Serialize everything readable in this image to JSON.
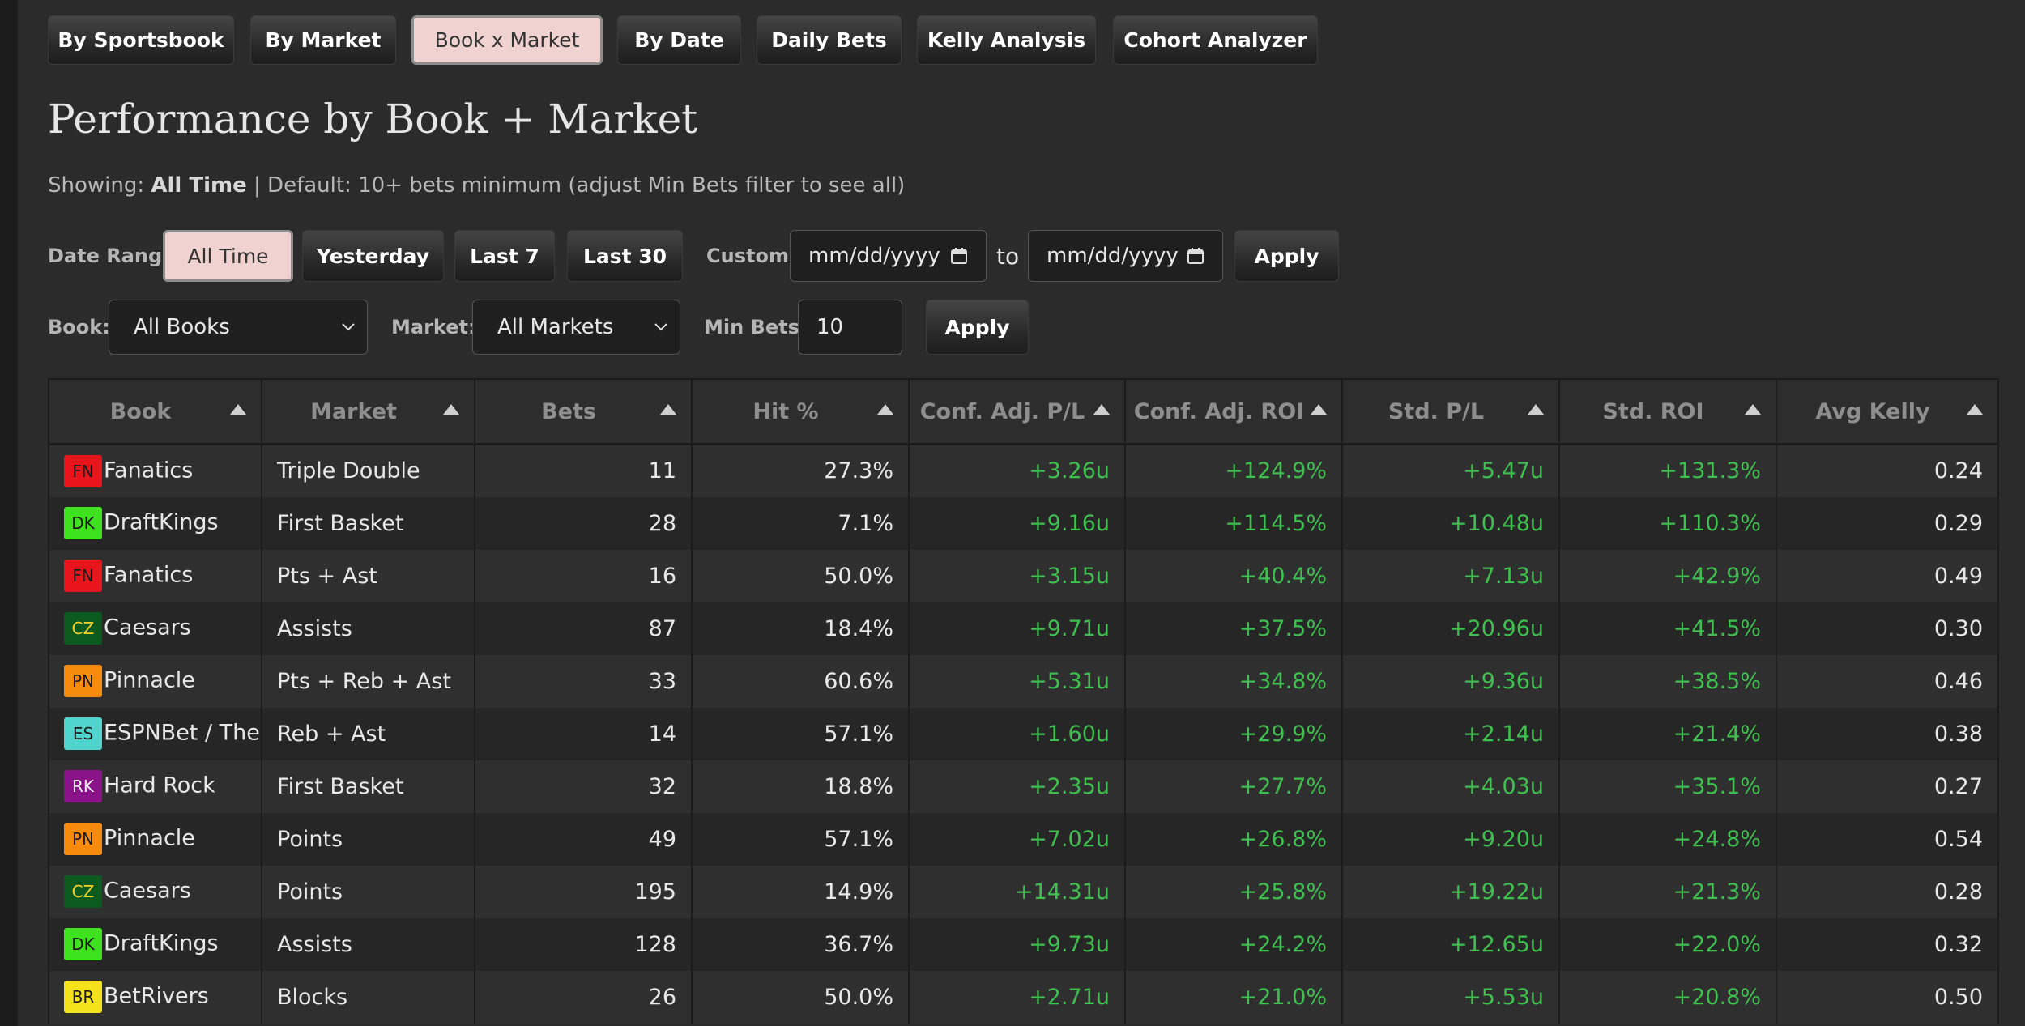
{
  "tabs": {
    "items": [
      "By Sportsbook",
      "By Market",
      "Book x Market",
      "By Date",
      "Daily Bets",
      "Kelly Analysis",
      "Cohort Analyzer"
    ],
    "active": 2
  },
  "header": {
    "title": "Performance by Book + Market"
  },
  "subtitle": {
    "prefix": "Showing:",
    "range": "All Time",
    "rest": "| Default: 10+ bets minimum (adjust Min Bets filter to see all)"
  },
  "date_filter": {
    "label": "Date Range:",
    "buttons": [
      "All Time",
      "Yesterday",
      "Last 7",
      "Last 30"
    ],
    "active": 0,
    "custom_label": "Custom:",
    "from": "mm/dd/yyyy",
    "to_label": "to",
    "to": "mm/dd/yyyy",
    "apply": "Apply"
  },
  "filters": {
    "book_label": "Book:",
    "book_value": "All Books",
    "market_label": "Market:",
    "market_value": "All Markets",
    "min_bets_label": "Min Bets:",
    "min_bets_value": "10",
    "apply": "Apply"
  },
  "table": {
    "headers": [
      "Book",
      "Market",
      "Bets",
      "Hit %",
      "Conf. Adj. P/L",
      "Conf. Adj. ROI",
      "Std. P/L",
      "Std. ROI",
      "Avg Kelly"
    ],
    "rows": [
      {
        "badge": "FN",
        "badge_color": "#e8141c",
        "badge_text_color": "#1a1a1a",
        "book": "Fanatics",
        "market": "Triple Double",
        "bets": "11",
        "hit": "27.3%",
        "conf_pl": "+3.26u",
        "conf_roi": "+124.9%",
        "std_pl": "+5.47u",
        "std_roi": "+131.3%",
        "kelly": "0.24"
      },
      {
        "badge": "DK",
        "badge_color": "#3fe21f",
        "badge_text_color": "#1a1a1a",
        "book": "DraftKings",
        "market": "First Basket",
        "bets": "28",
        "hit": "7.1%",
        "conf_pl": "+9.16u",
        "conf_roi": "+114.5%",
        "std_pl": "+10.48u",
        "std_roi": "+110.3%",
        "kelly": "0.29"
      },
      {
        "badge": "FN",
        "badge_color": "#e8141c",
        "badge_text_color": "#1a1a1a",
        "book": "Fanatics",
        "market": "Pts + Ast",
        "bets": "16",
        "hit": "50.0%",
        "conf_pl": "+3.15u",
        "conf_roi": "+40.4%",
        "std_pl": "+7.13u",
        "std_roi": "+42.9%",
        "kelly": "0.49"
      },
      {
        "badge": "CZ",
        "badge_color": "#0d5a1f",
        "badge_text_color": "#f2d22b",
        "book": "Caesars",
        "market": "Assists",
        "bets": "87",
        "hit": "18.4%",
        "conf_pl": "+9.71u",
        "conf_roi": "+37.5%",
        "std_pl": "+20.96u",
        "std_roi": "+41.5%",
        "kelly": "0.30"
      },
      {
        "badge": "PN",
        "badge_color": "#f68b0d",
        "badge_text_color": "#1a1a1a",
        "book": "Pinnacle",
        "market": "Pts + Reb + Ast",
        "bets": "33",
        "hit": "60.6%",
        "conf_pl": "+5.31u",
        "conf_roi": "+34.8%",
        "std_pl": "+9.36u",
        "std_roi": "+38.5%",
        "kelly": "0.46"
      },
      {
        "badge": "ES",
        "badge_color": "#4fd3cc",
        "badge_text_color": "#1a1a1a",
        "book": "ESPNBet / TheSc",
        "market": "Reb + Ast",
        "bets": "14",
        "hit": "57.1%",
        "conf_pl": "+1.60u",
        "conf_roi": "+29.9%",
        "std_pl": "+2.14u",
        "std_roi": "+21.4%",
        "kelly": "0.38"
      },
      {
        "badge": "RK",
        "badge_color": "#8a1389",
        "badge_text_color": "#f2f2f2",
        "book": "Hard Rock",
        "market": "First Basket",
        "bets": "32",
        "hit": "18.8%",
        "conf_pl": "+2.35u",
        "conf_roi": "+27.7%",
        "std_pl": "+4.03u",
        "std_roi": "+35.1%",
        "kelly": "0.27"
      },
      {
        "badge": "PN",
        "badge_color": "#f68b0d",
        "badge_text_color": "#1a1a1a",
        "book": "Pinnacle",
        "market": "Points",
        "bets": "49",
        "hit": "57.1%",
        "conf_pl": "+7.02u",
        "conf_roi": "+26.8%",
        "std_pl": "+9.20u",
        "std_roi": "+24.8%",
        "kelly": "0.54"
      },
      {
        "badge": "CZ",
        "badge_color": "#0d5a1f",
        "badge_text_color": "#f2d22b",
        "book": "Caesars",
        "market": "Points",
        "bets": "195",
        "hit": "14.9%",
        "conf_pl": "+14.31u",
        "conf_roi": "+25.8%",
        "std_pl": "+19.22u",
        "std_roi": "+21.3%",
        "kelly": "0.28"
      },
      {
        "badge": "DK",
        "badge_color": "#3fe21f",
        "badge_text_color": "#1a1a1a",
        "book": "DraftKings",
        "market": "Assists",
        "bets": "128",
        "hit": "36.7%",
        "conf_pl": "+9.73u",
        "conf_roi": "+24.2%",
        "std_pl": "+12.65u",
        "std_roi": "+22.0%",
        "kelly": "0.32"
      },
      {
        "badge": "BR",
        "badge_color": "#f3e21c",
        "badge_text_color": "#1a1a1a",
        "book": "BetRivers",
        "market": "Blocks",
        "bets": "26",
        "hit": "50.0%",
        "conf_pl": "+2.71u",
        "conf_roi": "+21.0%",
        "std_pl": "+5.53u",
        "std_roi": "+20.8%",
        "kelly": "0.50"
      }
    ]
  }
}
